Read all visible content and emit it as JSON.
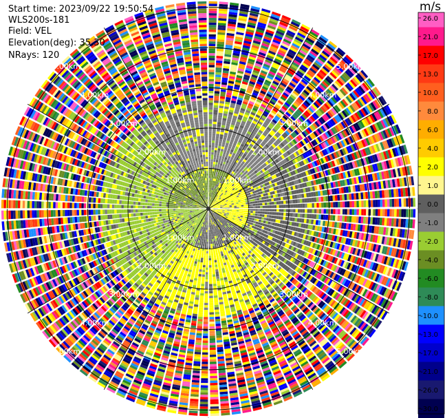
{
  "header": {
    "start_time": "Start time: 2023/09/22 19:50:54",
    "instrument": "WLS200s-181",
    "field": "Field: VEL",
    "elevation": "Elevation(deg): 35.30",
    "nrays": "NRays: 120"
  },
  "chart_data": {
    "type": "heatmap",
    "projection": "polar-ppi",
    "nrays": 120,
    "range_rings_km": [
      1.0,
      2.0,
      3.0,
      4.0,
      5.0
    ],
    "ring_labels": [
      "1.00km",
      "2.00km",
      "3.00km",
      "4.00km",
      "5.00km"
    ],
    "ring_label_bearings_deg": [
      45,
      135,
      225,
      315
    ],
    "spokes_bearings_deg": [
      0,
      30,
      60,
      90,
      120,
      150,
      180,
      210,
      240,
      270,
      300,
      330
    ],
    "colorbar": {
      "title": "m/s",
      "ticks": [
        "26.0",
        "21.0",
        "17.0",
        "13.0",
        "10.0",
        "8.0",
        "6.0",
        "4.0",
        "2.0",
        "1.0",
        "0.0",
        "-1.0",
        "-2.0",
        "-4.0",
        "-6.0",
        "-8.0",
        "-10.0",
        "-13.0",
        "-17.0",
        "-21.0",
        "-26.0",
        "-30.0"
      ],
      "colors": [
        "#ff5ec4",
        "#ff1a8c",
        "#ff0000",
        "#ff3a14",
        "#ff5f1f",
        "#ff8a3c",
        "#ffad00",
        "#ffcb00",
        "#ffff00",
        "#fff68f",
        "#5f5f5f",
        "#7f7f7f",
        "#9acd32",
        "#6b8e23",
        "#228b22",
        "#2e8b57",
        "#1e90ff",
        "#0000ff",
        "#0000cd",
        "#00008b",
        "#191970",
        "#000050"
      ]
    },
    "inner_region": {
      "radius_km": 1.0,
      "sector_summary": [
        {
          "bearing_from_deg": 30,
          "bearing_to_deg": 120,
          "dominant_value_ms": 2.0
        },
        {
          "bearing_from_deg": 120,
          "bearing_to_deg": 200,
          "dominant_value_ms": 0.0
        },
        {
          "bearing_from_deg": 200,
          "bearing_to_deg": 270,
          "dominant_value_ms": -2.0
        },
        {
          "bearing_from_deg": 270,
          "bearing_to_deg": 30,
          "dominant_value_ms": -4.0
        }
      ]
    },
    "mid_region": {
      "radius_km_from": 1.0,
      "radius_km_to": 2.7,
      "sector_summary": [
        {
          "bearing_from_deg": 130,
          "bearing_to_deg": 220,
          "dominant_value_ms": 2.0
        },
        {
          "bearing_from_deg": 220,
          "bearing_to_deg": 320,
          "dominant_value_ms": -2.0
        },
        {
          "bearing_from_deg": 320,
          "bearing_to_deg": 60,
          "dominant_value_ms": -1.0
        },
        {
          "bearing_from_deg": 60,
          "bearing_to_deg": 130,
          "dominant_value_ms": 0.0
        }
      ]
    },
    "outer_region": {
      "radius_km_from": 2.7,
      "radius_km_to": 5.5,
      "description_values": "noise"
    },
    "grid": true
  }
}
